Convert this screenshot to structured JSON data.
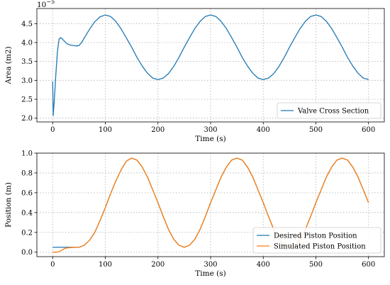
{
  "chart_data": [
    {
      "type": "line",
      "xlabel": "Time (s)",
      "ylabel": "Area (m2)",
      "offset_label": "10",
      "offset_exponent": "−5",
      "xlim": [
        -30,
        630
      ],
      "ylim": [
        1.9,
        4.9
      ],
      "xticks": [
        0,
        100,
        200,
        300,
        400,
        500,
        600
      ],
      "yticks": [
        2.0,
        2.5,
        3.0,
        3.5,
        4.0,
        4.5
      ],
      "ytick_labels": [
        "2.0",
        "2.5",
        "3.0",
        "3.5",
        "4.0",
        "4.5"
      ],
      "grid": true,
      "legend_position": "lower-right",
      "series": [
        {
          "name": "Valve Cross Section",
          "color": "#1f77b4",
          "x": [
            0,
            1,
            3,
            6,
            9,
            12,
            15,
            18,
            22,
            26,
            30,
            35,
            40,
            45,
            50,
            55,
            60,
            70,
            80,
            90,
            100,
            110,
            120,
            130,
            140,
            150,
            160,
            170,
            180,
            190,
            200,
            210,
            220,
            230,
            240,
            250,
            260,
            270,
            280,
            290,
            300,
            310,
            320,
            330,
            340,
            350,
            360,
            370,
            380,
            390,
            400,
            410,
            420,
            430,
            440,
            450,
            460,
            470,
            480,
            490,
            500,
            510,
            520,
            530,
            540,
            550,
            560,
            570,
            580,
            590,
            600
          ],
          "y": [
            2.97,
            2.07,
            2.45,
            3.15,
            3.75,
            4.08,
            4.13,
            4.1,
            4.04,
            3.98,
            3.95,
            3.93,
            3.92,
            3.91,
            3.92,
            4.0,
            4.12,
            4.35,
            4.55,
            4.68,
            4.73,
            4.69,
            4.56,
            4.36,
            4.12,
            3.88,
            3.61,
            3.38,
            3.19,
            3.06,
            3.02,
            3.06,
            3.18,
            3.37,
            3.61,
            3.88,
            4.13,
            4.37,
            4.56,
            4.69,
            4.73,
            4.69,
            4.56,
            4.37,
            4.13,
            3.88,
            3.61,
            3.38,
            3.19,
            3.06,
            3.02,
            3.06,
            3.18,
            3.37,
            3.61,
            3.88,
            4.13,
            4.37,
            4.56,
            4.69,
            4.73,
            4.69,
            4.56,
            4.37,
            4.13,
            3.88,
            3.61,
            3.38,
            3.19,
            3.06,
            3.02
          ]
        }
      ]
    },
    {
      "type": "line",
      "xlabel": "Time (s)",
      "ylabel": "Position (m)",
      "xlim": [
        -30,
        630
      ],
      "ylim": [
        -0.045,
        1.0
      ],
      "xticks": [
        0,
        100,
        200,
        300,
        400,
        500,
        600
      ],
      "yticks": [
        0.0,
        0.2,
        0.4,
        0.6,
        0.8,
        1.0
      ],
      "ytick_labels": [
        "0.0",
        "0.2",
        "0.4",
        "0.6",
        "0.8",
        "1.0"
      ],
      "grid": true,
      "legend_position": "lower-right",
      "series": [
        {
          "name": "Desired Piston Position",
          "color": "#1f77b4",
          "x": [
            0,
            10,
            20,
            30,
            40,
            50,
            60,
            70,
            80,
            90,
            100,
            110,
            120,
            130,
            140,
            150,
            160,
            170,
            180,
            190,
            200,
            210,
            220,
            230,
            240,
            250,
            260,
            270,
            280,
            290,
            300,
            310,
            320,
            330,
            340,
            350,
            360,
            370,
            380,
            390,
            400,
            410,
            420,
            430,
            440,
            450,
            460,
            470,
            480,
            490,
            500,
            510,
            520,
            530,
            540,
            550,
            560,
            570,
            580,
            590,
            600
          ],
          "y": [
            0.05,
            0.05,
            0.05,
            0.05,
            0.05,
            0.05,
            0.07,
            0.12,
            0.2,
            0.32,
            0.45,
            0.59,
            0.72,
            0.83,
            0.92,
            0.95,
            0.93,
            0.86,
            0.76,
            0.63,
            0.5,
            0.36,
            0.23,
            0.13,
            0.07,
            0.05,
            0.07,
            0.13,
            0.23,
            0.36,
            0.5,
            0.63,
            0.76,
            0.86,
            0.93,
            0.95,
            0.93,
            0.86,
            0.76,
            0.63,
            0.5,
            0.36,
            0.23,
            0.13,
            0.07,
            0.05,
            0.07,
            0.13,
            0.23,
            0.36,
            0.5,
            0.63,
            0.76,
            0.86,
            0.93,
            0.95,
            0.93,
            0.86,
            0.76,
            0.63,
            0.5
          ]
        },
        {
          "name": "Simulated Piston Position",
          "color": "#ff7f0e",
          "x": [
            0,
            8,
            14,
            20,
            25,
            30,
            40,
            50,
            60,
            70,
            80,
            90,
            100,
            110,
            120,
            130,
            140,
            150,
            160,
            170,
            180,
            190,
            200,
            210,
            220,
            230,
            240,
            250,
            260,
            270,
            280,
            290,
            300,
            310,
            320,
            330,
            340,
            350,
            360,
            370,
            380,
            390,
            400,
            410,
            420,
            430,
            440,
            450,
            460,
            470,
            480,
            490,
            500,
            510,
            520,
            530,
            540,
            550,
            560,
            570,
            580,
            590,
            600
          ],
          "y": [
            0.0,
            0.0,
            0.01,
            0.03,
            0.04,
            0.045,
            0.048,
            0.05,
            0.07,
            0.12,
            0.2,
            0.32,
            0.45,
            0.59,
            0.72,
            0.83,
            0.92,
            0.95,
            0.93,
            0.86,
            0.76,
            0.63,
            0.5,
            0.36,
            0.23,
            0.13,
            0.07,
            0.05,
            0.07,
            0.13,
            0.23,
            0.36,
            0.5,
            0.63,
            0.76,
            0.86,
            0.93,
            0.95,
            0.93,
            0.86,
            0.76,
            0.63,
            0.5,
            0.36,
            0.23,
            0.13,
            0.07,
            0.05,
            0.07,
            0.13,
            0.23,
            0.36,
            0.5,
            0.63,
            0.76,
            0.86,
            0.93,
            0.95,
            0.93,
            0.86,
            0.76,
            0.63,
            0.5
          ]
        }
      ]
    }
  ]
}
